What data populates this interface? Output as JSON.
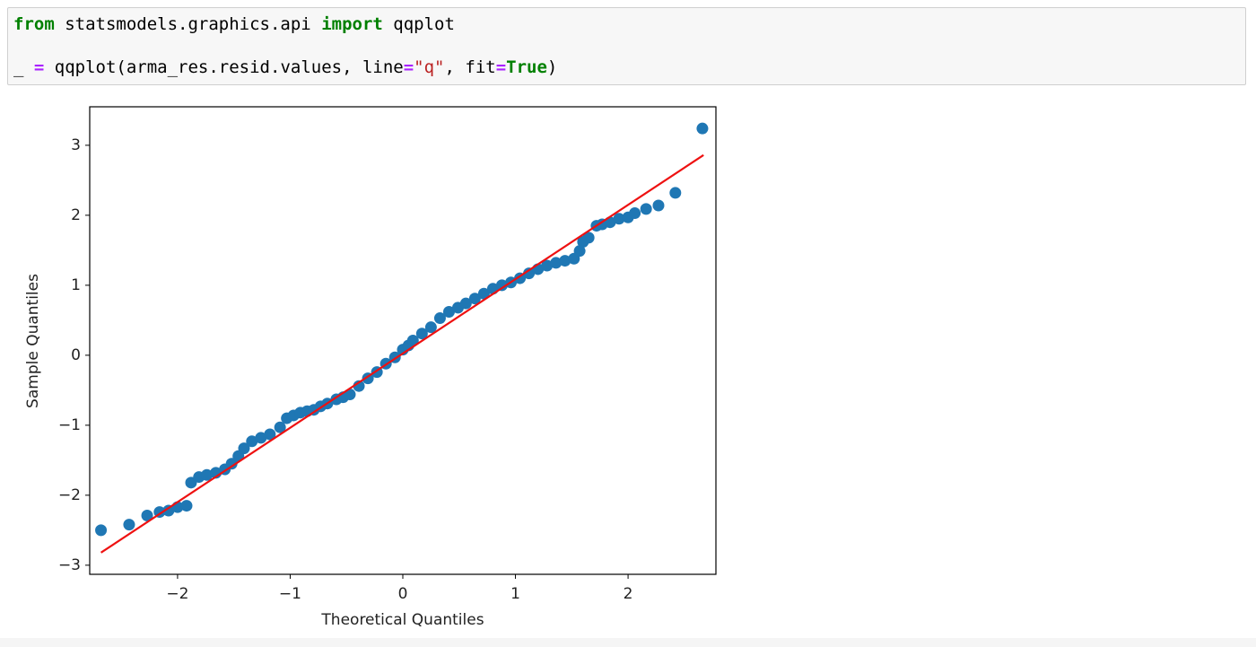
{
  "code": {
    "lines": [
      [
        {
          "text": "from",
          "color": "#008000",
          "bold": true
        },
        {
          "text": " statsmodels.graphics.api "
        },
        {
          "text": "import",
          "color": "#008000",
          "bold": true
        },
        {
          "text": " qqplot"
        }
      ],
      [],
      [
        {
          "text": "_ "
        },
        {
          "text": "=",
          "color": "#aa22ff",
          "bold": true
        },
        {
          "text": " qqplot(arma_res.resid.values, line"
        },
        {
          "text": "=",
          "color": "#aa22ff",
          "bold": true
        },
        {
          "text": "\"q\"",
          "color": "#ba2121"
        },
        {
          "text": ", fit"
        },
        {
          "text": "=",
          "color": "#aa22ff",
          "bold": true
        },
        {
          "text": "True",
          "color": "#008000",
          "bold": true
        },
        {
          "text": ")"
        }
      ]
    ]
  },
  "chart_data": {
    "type": "scatter",
    "xlabel": "Theoretical Quantiles",
    "ylabel": "Sample Quantiles",
    "x": [
      -2.68,
      -2.43,
      -2.27,
      -2.16,
      -2.08,
      -2.0,
      -1.92,
      -1.88,
      -1.81,
      -1.74,
      -1.66,
      -1.58,
      -1.52,
      -1.46,
      -1.41,
      -1.34,
      -1.26,
      -1.18,
      -1.09,
      -1.03,
      -0.97,
      -0.91,
      -0.85,
      -0.79,
      -0.73,
      -0.67,
      -0.59,
      -0.53,
      -0.47,
      -0.39,
      -0.31,
      -0.23,
      -0.15,
      -0.07,
      0.0,
      0.05,
      0.09,
      0.17,
      0.25,
      0.33,
      0.41,
      0.49,
      0.56,
      0.64,
      0.72,
      0.8,
      0.88,
      0.96,
      1.04,
      1.12,
      1.2,
      1.28,
      1.36,
      1.44,
      1.52,
      1.57,
      1.6,
      1.65,
      1.72,
      1.77,
      1.84,
      1.92,
      2.0,
      2.06,
      2.16,
      2.27,
      2.42,
      2.66
    ],
    "values": [
      -2.5,
      -2.42,
      -2.29,
      -2.24,
      -2.22,
      -2.17,
      -2.15,
      -1.82,
      -1.74,
      -1.71,
      -1.68,
      -1.63,
      -1.55,
      -1.44,
      -1.33,
      -1.23,
      -1.18,
      -1.13,
      -1.03,
      -0.9,
      -0.86,
      -0.82,
      -0.8,
      -0.78,
      -0.73,
      -0.69,
      -0.63,
      -0.6,
      -0.56,
      -0.44,
      -0.33,
      -0.24,
      -0.12,
      -0.03,
      0.08,
      0.14,
      0.21,
      0.31,
      0.4,
      0.53,
      0.62,
      0.68,
      0.74,
      0.81,
      0.88,
      0.95,
      1.0,
      1.04,
      1.1,
      1.17,
      1.23,
      1.28,
      1.32,
      1.35,
      1.38,
      1.49,
      1.62,
      1.68,
      1.85,
      1.87,
      1.9,
      1.95,
      1.97,
      2.03,
      2.09,
      2.14,
      2.32,
      3.24
    ],
    "color": "#1f77b4",
    "line": {
      "x": [
        -2.68,
        2.67
      ],
      "y": [
        -2.82,
        2.86
      ],
      "color": "#ee1111"
    },
    "xlim": [
      -2.78,
      2.78
    ],
    "ylim": [
      -3.13,
      3.55
    ],
    "xticks": [
      {
        "value": -2,
        "label": "−2"
      },
      {
        "value": -1,
        "label": "−1"
      },
      0,
      1,
      2
    ],
    "yticks": [
      {
        "value": -3,
        "label": "−3"
      },
      {
        "value": -2,
        "label": "−2"
      },
      {
        "value": -1,
        "label": "−1"
      },
      0,
      1,
      2,
      3
    ]
  }
}
